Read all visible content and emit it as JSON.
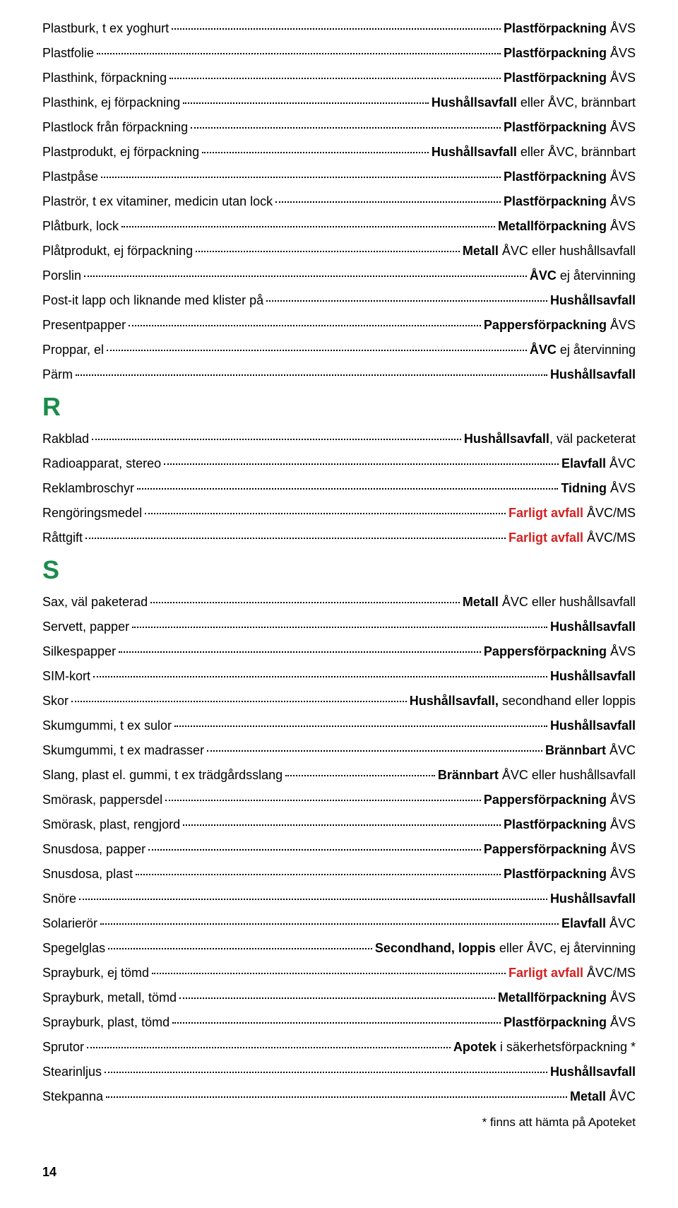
{
  "sections": [
    {
      "rows": [
        {
          "item": "Plastburk, t ex yoghurt",
          "parts": [
            {
              "t": "Plastförpackning",
              "b": true
            },
            {
              "t": " ÅVS"
            }
          ]
        },
        {
          "item": "Plastfolie",
          "parts": [
            {
              "t": "Plastförpackning",
              "b": true
            },
            {
              "t": " ÅVS"
            }
          ]
        },
        {
          "item": "Plasthink, förpackning",
          "parts": [
            {
              "t": "Plastförpackning",
              "b": true
            },
            {
              "t": " ÅVS"
            }
          ]
        },
        {
          "item": "Plasthink, ej förpackning",
          "parts": [
            {
              "t": "Hushållsavfall",
              "b": true
            },
            {
              "t": " eller ÅVC, brännbart"
            }
          ]
        },
        {
          "item": "Plastlock från förpackning",
          "parts": [
            {
              "t": "Plastförpackning",
              "b": true
            },
            {
              "t": " ÅVS"
            }
          ]
        },
        {
          "item": "Plastprodukt, ej förpackning",
          "parts": [
            {
              "t": "Hushållsavfall",
              "b": true
            },
            {
              "t": " eller ÅVC, brännbart"
            }
          ]
        },
        {
          "item": "Plastpåse",
          "parts": [
            {
              "t": "Plastförpackning",
              "b": true
            },
            {
              "t": " ÅVS"
            }
          ]
        },
        {
          "item": "Plaströr, t ex vitaminer, medicin utan lock",
          "parts": [
            {
              "t": "Plastförpackning",
              "b": true
            },
            {
              "t": " ÅVS"
            }
          ]
        },
        {
          "item": "Plåtburk, lock",
          "parts": [
            {
              "t": "Metallförpackning",
              "b": true
            },
            {
              "t": " ÅVS"
            }
          ]
        },
        {
          "item": "Plåtprodukt, ej förpackning",
          "parts": [
            {
              "t": "Metall",
              "b": true
            },
            {
              "t": " ÅVC eller hushållsavfall"
            }
          ]
        },
        {
          "item": "Porslin",
          "parts": [
            {
              "t": "ÅVC",
              "b": true
            },
            {
              "t": " ej återvinning"
            }
          ]
        },
        {
          "item": "Post-it lapp och liknande med klister på",
          "parts": [
            {
              "t": "Hushållsavfall",
              "b": true
            }
          ]
        },
        {
          "item": "Presentpapper",
          "parts": [
            {
              "t": "Pappersförpackning",
              "b": true
            },
            {
              "t": " ÅVS"
            }
          ]
        },
        {
          "item": "Proppar, el",
          "parts": [
            {
              "t": "ÅVC",
              "b": true
            },
            {
              "t": " ej återvinning"
            }
          ]
        },
        {
          "item": "Pärm",
          "parts": [
            {
              "t": "Hushållsavfall",
              "b": true
            }
          ]
        }
      ]
    },
    {
      "letter": "R",
      "rows": [
        {
          "item": "Rakblad",
          "parts": [
            {
              "t": "Hushållsavfall",
              "b": true
            },
            {
              "t": ", väl packeterat"
            }
          ]
        },
        {
          "item": "Radioapparat, stereo",
          "parts": [
            {
              "t": "Elavfall",
              "b": true
            },
            {
              "t": " ÅVC"
            }
          ]
        },
        {
          "item": "Reklambroschyr",
          "parts": [
            {
              "t": "Tidning",
              "b": true
            },
            {
              "t": " ÅVS"
            }
          ]
        },
        {
          "item": "Rengöringsmedel",
          "parts": [
            {
              "t": "Farligt avfall",
              "b": true,
              "red": true
            },
            {
              "t": " ÅVC/MS"
            }
          ]
        },
        {
          "item": "Råttgift",
          "parts": [
            {
              "t": "Farligt avfall",
              "b": true,
              "red": true
            },
            {
              "t": " ÅVC/MS"
            }
          ]
        }
      ]
    },
    {
      "letter": "S",
      "rows": [
        {
          "item": "Sax, väl paketerad",
          "parts": [
            {
              "t": "Metall",
              "b": true
            },
            {
              "t": " ÅVC eller hushållsavfall"
            }
          ]
        },
        {
          "item": "Servett, papper",
          "parts": [
            {
              "t": "Hushållsavfall",
              "b": true
            }
          ]
        },
        {
          "item": "Silkespapper",
          "parts": [
            {
              "t": "Pappersförpackning",
              "b": true
            },
            {
              "t": " ÅVS"
            }
          ]
        },
        {
          "item": "SIM-kort",
          "parts": [
            {
              "t": "Hushållsavfall",
              "b": true
            }
          ]
        },
        {
          "item": "Skor",
          "parts": [
            {
              "t": "Hushållsavfall,",
              "b": true
            },
            {
              "t": " secondhand eller loppis"
            }
          ]
        },
        {
          "item": "Skumgummi, t ex sulor",
          "parts": [
            {
              "t": "Hushållsavfall",
              "b": true
            }
          ]
        },
        {
          "item": "Skumgummi, t ex madrasser",
          "parts": [
            {
              "t": "Brännbart",
              "b": true
            },
            {
              "t": " ÅVC"
            }
          ]
        },
        {
          "item": "Slang, plast el. gummi, t ex trädgårdsslang",
          "parts": [
            {
              "t": "Brännbart ",
              "b": true
            },
            {
              "t": " ÅVC eller hushållsavfall"
            }
          ]
        },
        {
          "item": "Smörask, pappersdel",
          "parts": [
            {
              "t": "Pappersförpackning",
              "b": true
            },
            {
              "t": " ÅVS"
            }
          ]
        },
        {
          "item": "Smörask, plast, rengjord",
          "parts": [
            {
              "t": "Plastförpackning",
              "b": true
            },
            {
              "t": " ÅVS"
            }
          ]
        },
        {
          "item": "Snusdosa, papper",
          "parts": [
            {
              "t": "Pappersförpackning",
              "b": true
            },
            {
              "t": " ÅVS"
            }
          ]
        },
        {
          "item": "Snusdosa, plast",
          "parts": [
            {
              "t": "Plastförpackning",
              "b": true
            },
            {
              "t": " ÅVS"
            }
          ]
        },
        {
          "item": "Snöre",
          "parts": [
            {
              "t": "Hushållsavfall",
              "b": true
            }
          ]
        },
        {
          "item": "Solarierör",
          "parts": [
            {
              "t": "Elavfall",
              "b": true
            },
            {
              "t": " ÅVC"
            }
          ]
        },
        {
          "item": "Spegelglas",
          "parts": [
            {
              "t": "Secondhand, loppis",
              "b": true
            },
            {
              "t": " eller ÅVC, ej återvinning"
            }
          ]
        },
        {
          "item": "Sprayburk, ej tömd",
          "parts": [
            {
              "t": "Farligt avfall",
              "b": true,
              "red": true
            },
            {
              "t": " ÅVC/MS"
            }
          ]
        },
        {
          "item": "Sprayburk, metall, tömd",
          "parts": [
            {
              "t": "Metallförpackning",
              "b": true
            },
            {
              "t": " ÅVS"
            }
          ]
        },
        {
          "item": "Sprayburk, plast, tömd",
          "parts": [
            {
              "t": "Plastförpackning",
              "b": true
            },
            {
              "t": " ÅVS"
            }
          ]
        },
        {
          "item": "Sprutor",
          "parts": [
            {
              "t": "Apotek",
              "b": true
            },
            {
              "t": " i säkerhetsförpackning *"
            }
          ]
        },
        {
          "item": "Stearinljus",
          "parts": [
            {
              "t": "Hushållsavfall",
              "b": true
            }
          ]
        },
        {
          "item": "Stekpanna",
          "parts": [
            {
              "t": "Metall",
              "b": true
            },
            {
              "t": " ÅVC"
            }
          ]
        }
      ]
    }
  ],
  "footnote": "* finns att hämta på Apoteket",
  "pageNumber": "14",
  "colors": {
    "accent": "#1a8c4a",
    "danger": "#d62020"
  }
}
